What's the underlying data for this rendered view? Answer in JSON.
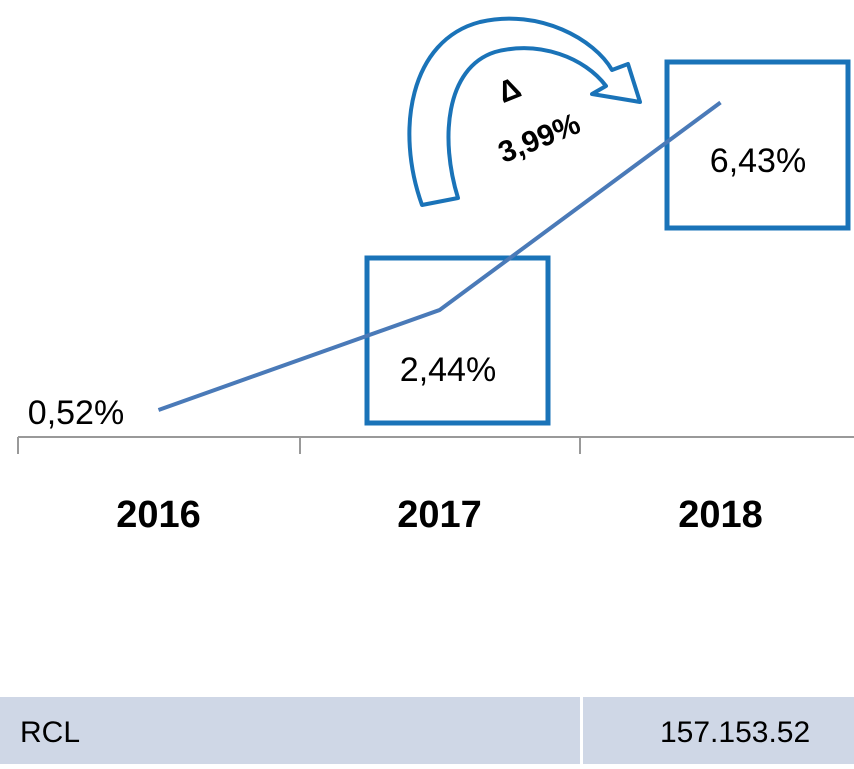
{
  "chart_data": {
    "type": "line",
    "categories": [
      "2016",
      "2017",
      "2018"
    ],
    "values": [
      0.52,
      2.44,
      6.43
    ],
    "value_labels": [
      "0,52%",
      "2,44%",
      "6,43%"
    ],
    "color": "#4a7ab8",
    "ylim": [
      0,
      8.4
    ],
    "annotations": [
      "Δ",
      "3,99%"
    ]
  },
  "table": {
    "rows": [
      [
        "RCL",
        "157.153.52"
      ]
    ]
  }
}
